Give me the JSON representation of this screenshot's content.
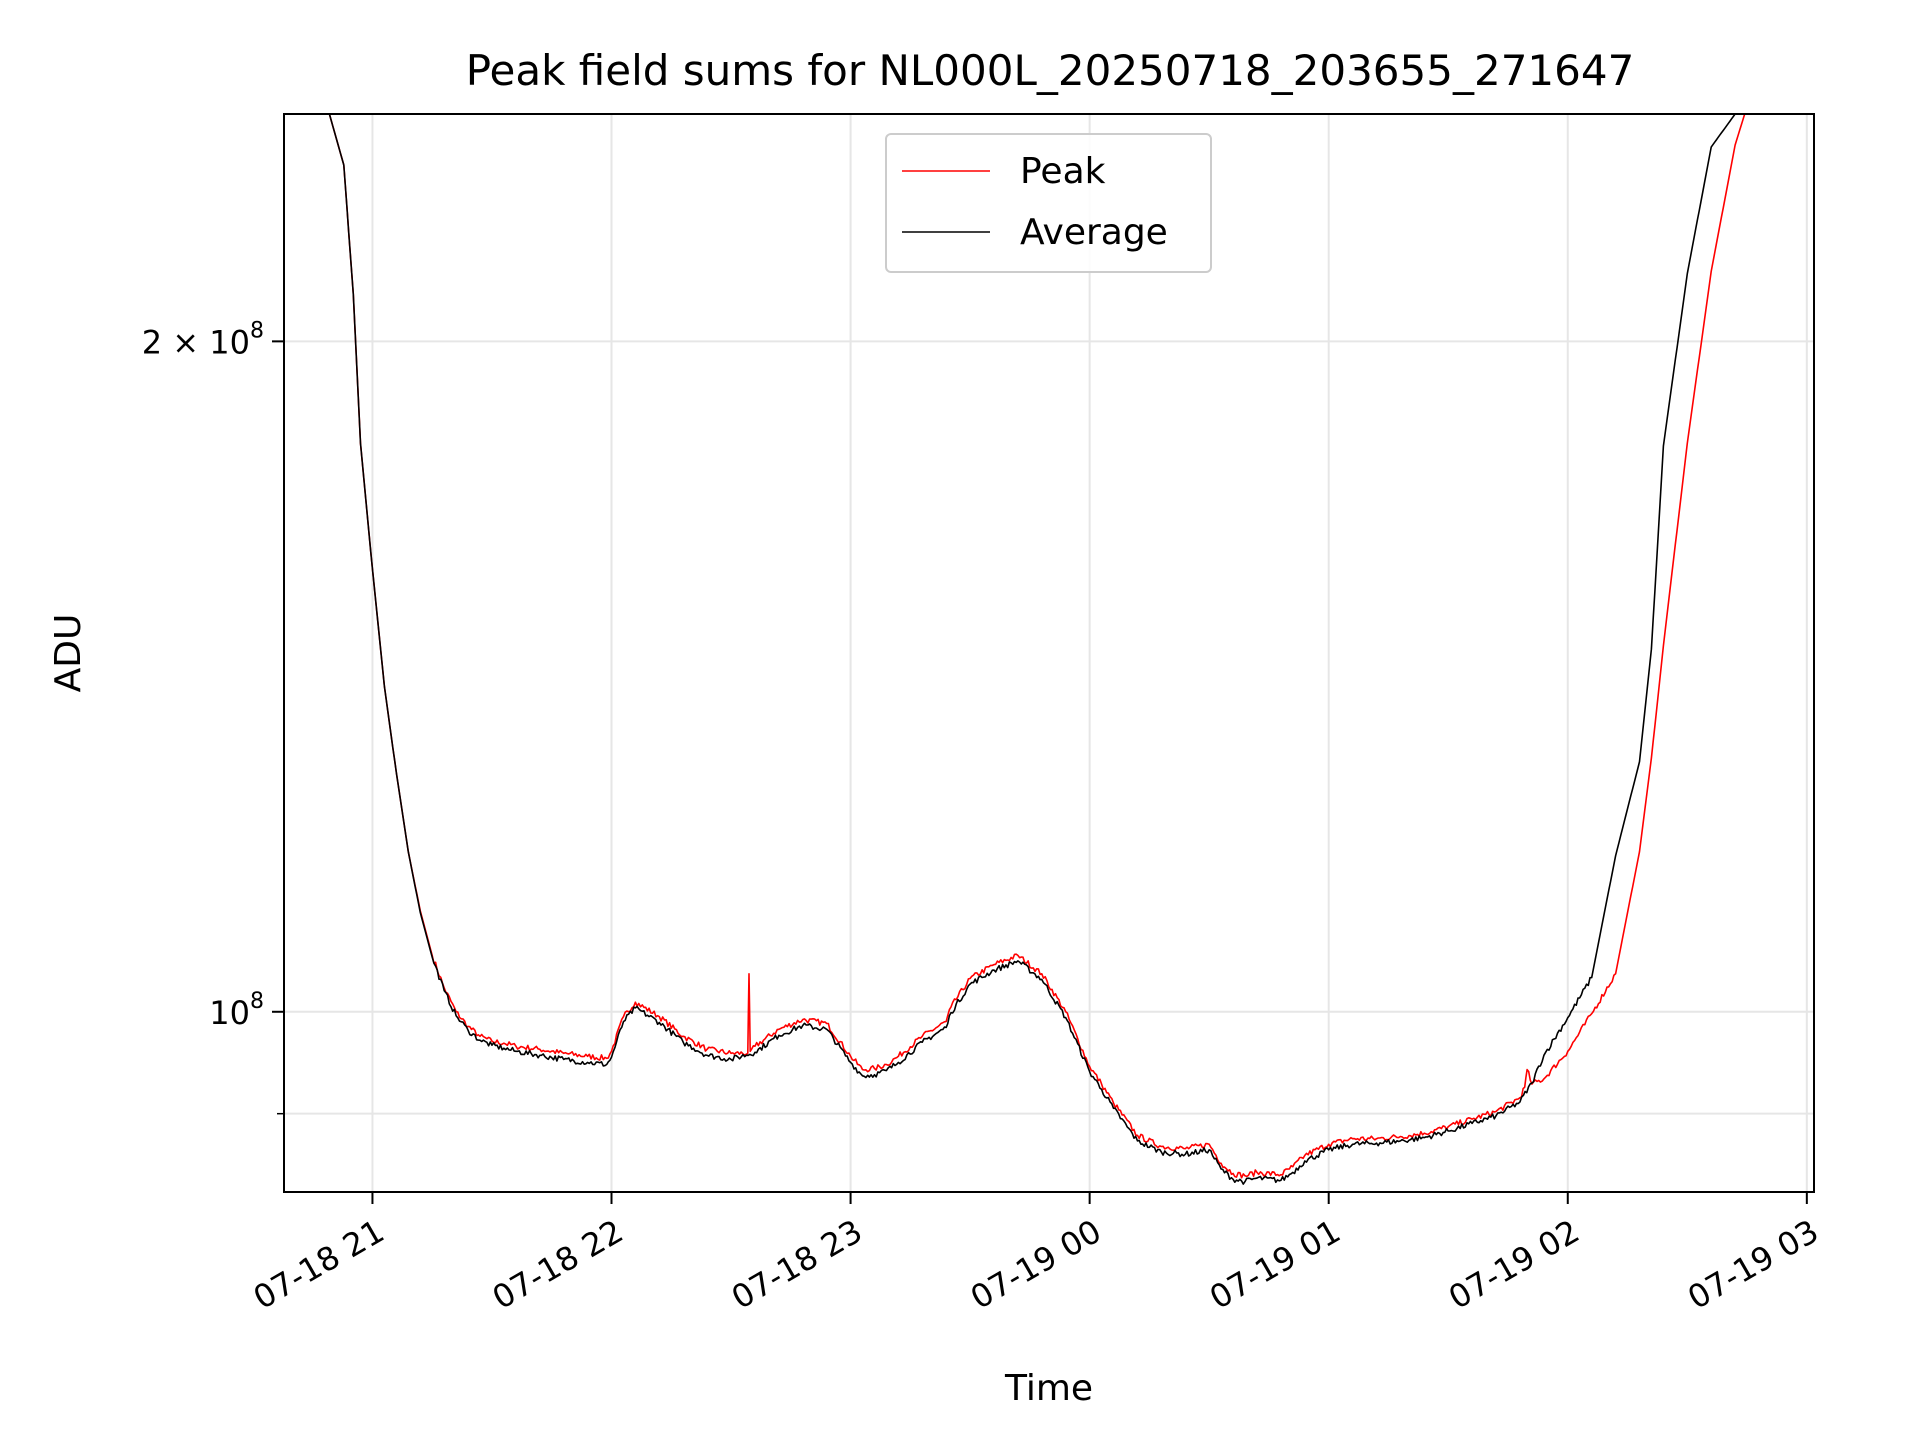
{
  "chart_data": {
    "type": "line",
    "title": "Peak field sums for NL000L_20250718_203655_271647",
    "xlabel": "Time",
    "ylabel": "ADU",
    "x_tick_labels": [
      "07-18 21",
      "07-18 22",
      "07-18 23",
      "07-19 00",
      "07-19 01",
      "07-19 02",
      "07-19 03"
    ],
    "x_ticks_hours": [
      21,
      22,
      23,
      24,
      25,
      26,
      27
    ],
    "y_scale": "log",
    "y_tick_labels": [
      {
        "value": 200000000,
        "base": "2 × 10",
        "exp": "8"
      },
      {
        "value": 100000000,
        "base": "10",
        "exp": "8"
      }
    ],
    "y_minor_ticks": [
      90000000
    ],
    "xlim_hours": [
      20.63,
      27.03
    ],
    "ylim": [
      83000000,
      253000000
    ],
    "grid": true,
    "legend": {
      "placement": "top-center",
      "entries": [
        "Peak",
        "Average"
      ]
    },
    "series": [
      {
        "name": "Peak",
        "color": "#ff0000",
        "x_hours": [
          20.82,
          20.88,
          20.92,
          20.95,
          21.0,
          21.05,
          21.1,
          21.15,
          21.2,
          21.25,
          21.3,
          21.35,
          21.4,
          21.45,
          21.5,
          21.55,
          21.6,
          21.7,
          21.8,
          21.9,
          21.98,
          22.0,
          22.05,
          22.1,
          22.2,
          22.3,
          22.4,
          22.5,
          22.57,
          22.575,
          22.58,
          22.6,
          22.7,
          22.8,
          22.9,
          23.0,
          23.05,
          23.1,
          23.15,
          23.2,
          23.3,
          23.4,
          23.42,
          23.5,
          23.6,
          23.7,
          23.8,
          23.9,
          24.0,
          24.05,
          24.1,
          24.2,
          24.3,
          24.4,
          24.5,
          24.55,
          24.6,
          24.65,
          24.7,
          24.8,
          24.85,
          24.9,
          25.0,
          25.1,
          25.2,
          25.3,
          25.4,
          25.5,
          25.6,
          25.7,
          25.8,
          25.82,
          25.83,
          25.85,
          25.9,
          26.0,
          26.1,
          26.2,
          26.3,
          26.35,
          26.4,
          26.5,
          26.6,
          26.7,
          26.74
        ],
        "values": [
          253000000,
          240000000,
          210000000,
          180000000,
          158000000,
          140000000,
          128000000,
          118000000,
          111000000,
          106000000,
          102500000,
          100000000,
          98500000,
          97500000,
          97000000,
          96800000,
          96500000,
          96200000,
          95800000,
          95500000,
          95300000,
          96000000,
          99500000,
          101000000,
          99500000,
          97500000,
          96200000,
          95800000,
          95800000,
          104000000,
          96000000,
          96500000,
          98200000,
          99200000,
          98800000,
          95500000,
          94200000,
          94300000,
          94700000,
          95500000,
          97500000,
          99000000,
          100500000,
          103500000,
          105000000,
          106000000,
          104000000,
          100000000,
          94500000,
          92800000,
          91000000,
          88000000,
          87000000,
          86800000,
          87200000,
          85500000,
          84600000,
          84400000,
          84700000,
          84500000,
          85200000,
          86200000,
          87200000,
          87700000,
          87700000,
          87900000,
          88200000,
          88800000,
          89500000,
          90200000,
          91500000,
          92500000,
          94200000,
          92800000,
          93300000,
          96000000,
          99800000,
          104000000,
          118000000,
          130000000,
          146000000,
          180000000,
          215000000,
          245000000,
          253000000
        ]
      },
      {
        "name": "Average",
        "color": "#000000",
        "x_hours": [
          20.82,
          20.88,
          20.92,
          20.95,
          21.0,
          21.05,
          21.1,
          21.15,
          21.2,
          21.25,
          21.3,
          21.35,
          21.4,
          21.45,
          21.5,
          21.55,
          21.6,
          21.7,
          21.8,
          21.9,
          21.98,
          22.0,
          22.05,
          22.1,
          22.2,
          22.3,
          22.4,
          22.5,
          22.6,
          22.7,
          22.8,
          22.9,
          23.0,
          23.05,
          23.1,
          23.15,
          23.2,
          23.3,
          23.4,
          23.42,
          23.5,
          23.6,
          23.7,
          23.8,
          23.9,
          24.0,
          24.05,
          24.1,
          24.2,
          24.3,
          24.4,
          24.5,
          24.55,
          24.6,
          24.65,
          24.7,
          24.8,
          24.85,
          24.9,
          25.0,
          25.1,
          25.2,
          25.3,
          25.4,
          25.5,
          25.6,
          25.7,
          25.8,
          25.85,
          25.9,
          26.0,
          26.1,
          26.2,
          26.3,
          26.35,
          26.4,
          26.5,
          26.6,
          26.7,
          26.74
        ],
        "values": [
          253000000,
          240000000,
          210000000,
          180000000,
          158000000,
          140000000,
          128000000,
          118000000,
          110800000,
          105800000,
          102200000,
          99600000,
          98100000,
          97100000,
          96600000,
          96300000,
          96000000,
          95600000,
          95200000,
          94900000,
          94700000,
          95400000,
          99000000,
          100400000,
          98900000,
          96900000,
          95600000,
          95200000,
          95900000,
          97600000,
          98600000,
          98200000,
          94900000,
          93600000,
          93700000,
          94100000,
          94900000,
          96900000,
          98400000,
          99900000,
          102900000,
          104400000,
          105400000,
          103400000,
          99400000,
          94000000,
          92300000,
          90500000,
          87500000,
          86500000,
          86300000,
          86700000,
          85000000,
          84100000,
          83900000,
          84200000,
          84000000,
          84700000,
          85700000,
          86700000,
          87200000,
          87300000,
          87500000,
          87800000,
          88400000,
          89100000,
          89800000,
          91100000,
          92900000,
          95600000,
          99400000,
          103600000,
          117500000,
          129500000,
          145500000,
          179500000,
          214500000,
          244500000,
          253000000,
          253000000
        ]
      }
    ]
  }
}
